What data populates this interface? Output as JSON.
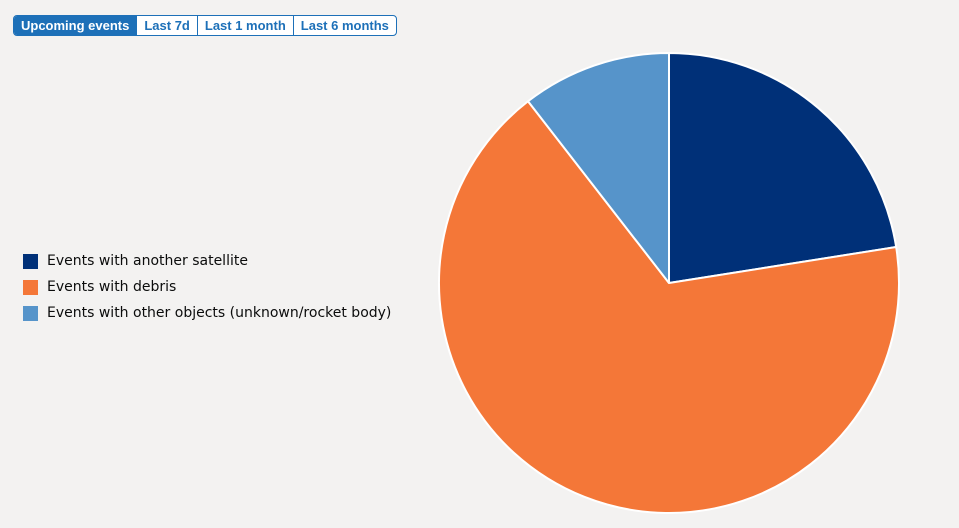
{
  "tabs": [
    {
      "label": "Upcoming events",
      "active": true
    },
    {
      "label": "Last 7d",
      "active": false
    },
    {
      "label": "Last 1 month",
      "active": false
    },
    {
      "label": "Last 6 months",
      "active": false
    }
  ],
  "chart_data": {
    "type": "pie",
    "title": "",
    "legend_position": "left",
    "slices": [
      {
        "label": "Events with another satellite",
        "value": 22.5,
        "color": "#003078"
      },
      {
        "label": "Events with debris",
        "value": 67.0,
        "color": "#f47738"
      },
      {
        "label": "Events with other objects (unknown/rocket body)",
        "value": 10.5,
        "color": "#5694ca"
      }
    ]
  }
}
